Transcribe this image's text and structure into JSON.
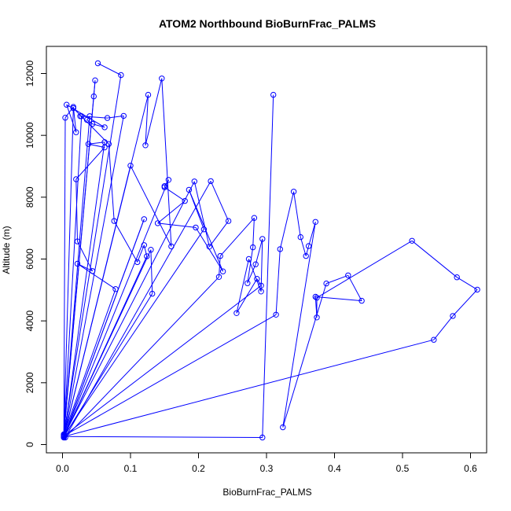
{
  "chart_data": {
    "type": "line",
    "title": "ATOM2 Northbound BioBurnFrac_PALMS",
    "xlabel": "BioBurnFrac_PALMS",
    "ylabel": "Altitude (m)",
    "xlim": [
      0.0,
      0.6
    ],
    "ylim": [
      0,
      12000
    ],
    "xticks": [
      0.0,
      0.1,
      0.2,
      0.3,
      0.4,
      0.5,
      0.6
    ],
    "xtick_labels": [
      "0.0",
      "0.1",
      "0.2",
      "0.3",
      "0.4",
      "0.5",
      "0.6"
    ],
    "yticks": [
      0,
      2000,
      4000,
      6000,
      8000,
      10000,
      12000
    ],
    "ytick_labels": [
      "0",
      "2000",
      "4000",
      "6000",
      "8000",
      "10000",
      "12000"
    ],
    "grid": false,
    "series_color": "#0000ff",
    "series": [
      {
        "x": [
          0.052,
          0.086,
          0.002,
          0.048,
          0.046,
          0.002,
          0.04,
          0.036,
          0.044,
          0.062,
          0.006,
          0.02,
          0.016,
          0.004,
          0.002,
          0.028,
          0.026,
          0.066,
          0.09,
          0.002,
          0.062,
          0.038,
          0.062,
          0.02,
          0.022,
          0.044,
          0.022,
          0.078,
          0.002,
          0.016,
          0.068,
          0.076,
          0.11,
          0.12,
          0.124,
          0.002,
          0.132,
          0.13,
          0.002,
          0.12,
          0.002,
          0.126,
          0.122,
          0.146,
          0.16,
          0.1,
          0.002,
          0.156,
          0.15,
          0.15,
          0.18,
          0.14,
          0.196,
          0.236,
          0.186,
          0.208,
          0.002,
          0.194,
          0.216,
          0.244,
          0.218,
          0.004,
          0.23,
          0.232,
          0.282,
          0.28,
          0.272,
          0.284,
          0.294,
          0.292,
          0.274,
          0.256,
          0.286,
          0.292,
          0.002,
          0.314,
          0.32,
          0.34,
          0.35,
          0.358,
          0.362,
          0.372,
          0.324,
          0.388,
          0.42,
          0.44,
          0.372,
          0.374,
          0.374,
          0.514,
          0.58,
          0.61,
          0.574,
          0.546,
          0.002,
          0.294,
          0.31
        ],
        "y": [
          12330,
          11950,
          320,
          11780,
          11260,
          300,
          10620,
          10500,
          10370,
          10260,
          10990,
          10100,
          10920,
          10570,
          250,
          10620,
          10620,
          10560,
          10630,
          230,
          9780,
          9720,
          9610,
          8580,
          6570,
          5610,
          5850,
          5030,
          330,
          10880,
          9720,
          7230,
          5900,
          6450,
          6090,
          250,
          4880,
          6300,
          250,
          7290,
          250,
          11310,
          9680,
          11840,
          6410,
          9020,
          250,
          8560,
          8360,
          8320,
          7880,
          7160,
          7020,
          5600,
          8240,
          6960,
          280,
          8510,
          6400,
          7230,
          8520,
          230,
          5420,
          6100,
          7330,
          6380,
          5220,
          5830,
          6650,
          4950,
          6000,
          4250,
          5360,
          5140,
          280,
          4200,
          6320,
          8180,
          6710,
          6100,
          6420,
          7200,
          560,
          5210,
          5470,
          4650,
          4780,
          4110,
          4750,
          6590,
          5410,
          5010,
          4160,
          3390,
          260,
          230,
          11310
        ]
      }
    ]
  }
}
